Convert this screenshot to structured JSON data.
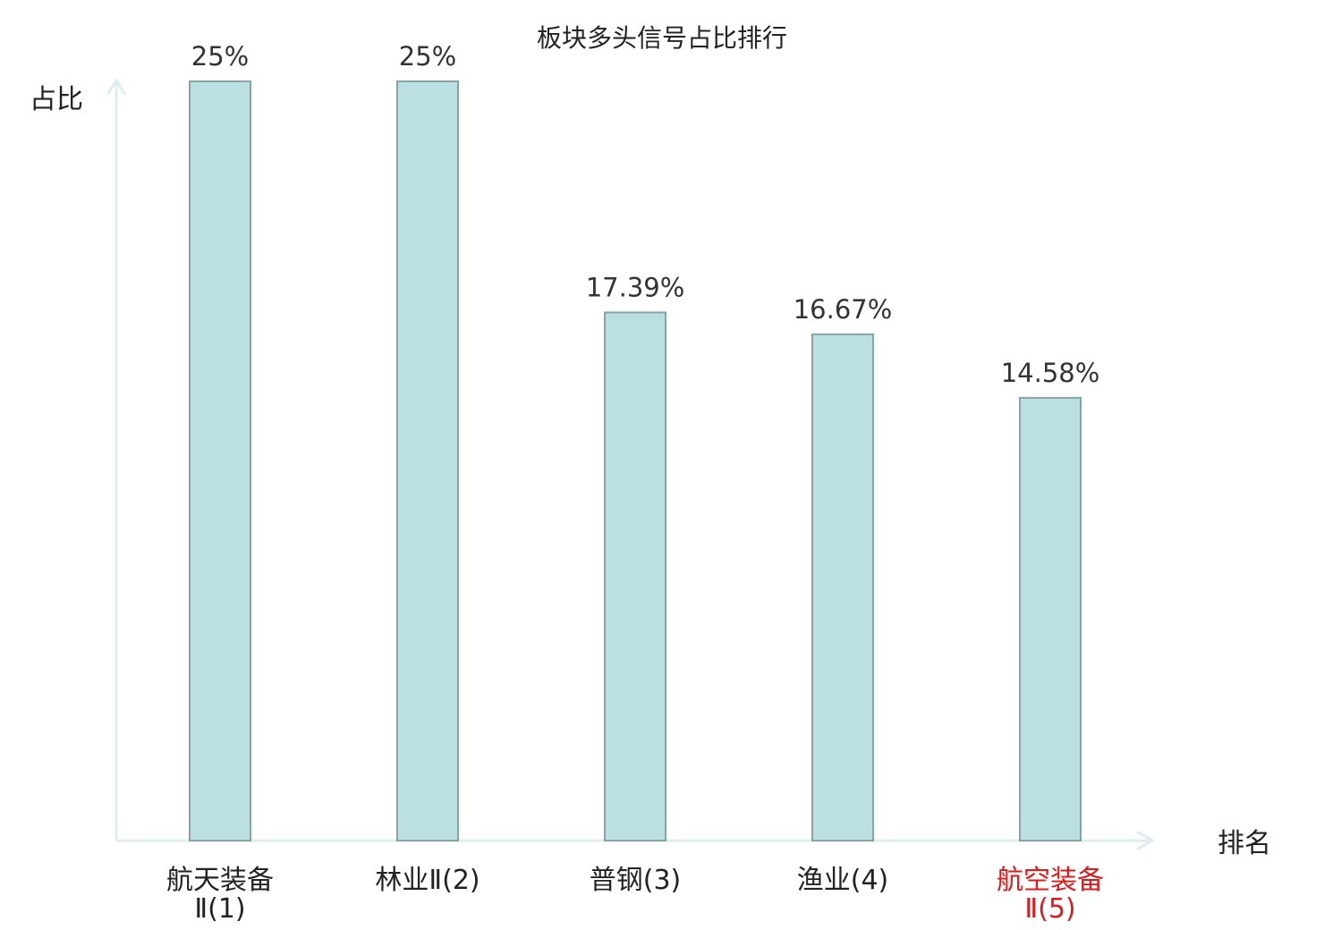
{
  "chart_data": {
    "type": "bar",
    "title": "板块多头信号占比排行",
    "xlabel": "排名",
    "ylabel": "占比",
    "categories": [
      {
        "lines": [
          "航天装备",
          "Ⅱ(1)"
        ],
        "highlight": false
      },
      {
        "lines": [
          "林业Ⅱ(2)"
        ],
        "highlight": false
      },
      {
        "lines": [
          "普钢(3)"
        ],
        "highlight": false
      },
      {
        "lines": [
          "渔业(4)"
        ],
        "highlight": false
      },
      {
        "lines": [
          "航空装备",
          "Ⅱ(5)"
        ],
        "highlight": true
      }
    ],
    "values": [
      25,
      25,
      17.39,
      16.67,
      14.58
    ],
    "value_labels": [
      "25%",
      "25%",
      "17.39%",
      "16.67%",
      "14.58%"
    ],
    "ylim": [
      0,
      25
    ],
    "grid": false,
    "legend": "none"
  },
  "colors": {
    "bar_fill": "#bce0e1",
    "bar_stroke": "#86a3a5",
    "axis": "#dcefed",
    "text": "#222222",
    "value_text": "#333333",
    "highlight": "#e01818"
  }
}
